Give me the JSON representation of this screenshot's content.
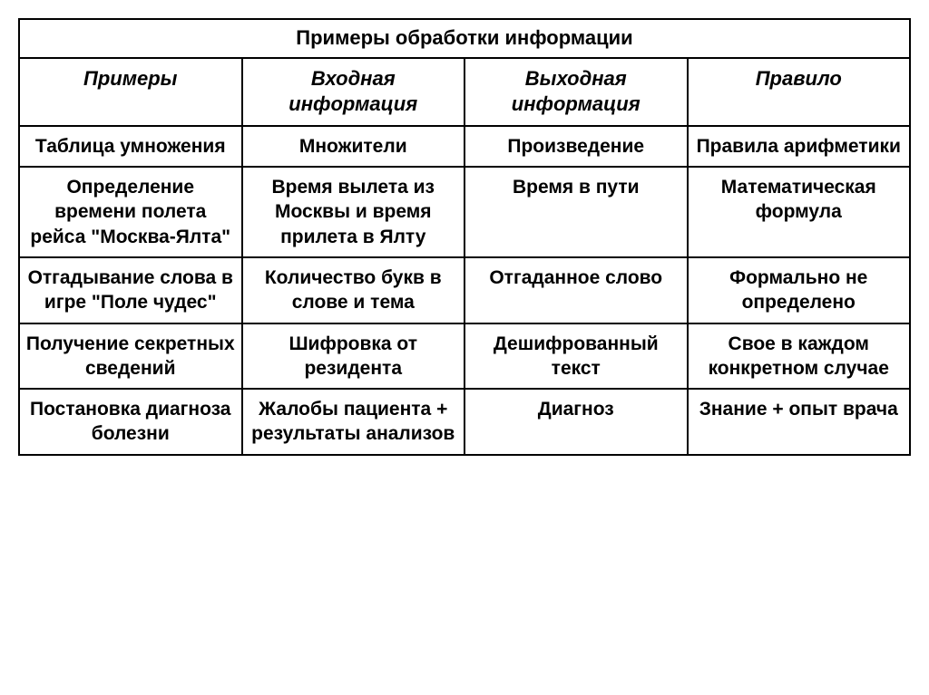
{
  "table": {
    "title": "Примеры обработки информации",
    "headers": [
      "Примеры",
      "Входная информация",
      "Выходная информация",
      "Правило"
    ],
    "rows": [
      [
        "Таблица умножения",
        "Множители",
        "Произведение",
        "Правила арифметики"
      ],
      [
        "Определение времени полета рейса \"Москва-Ялта\"",
        "Время вылета из Москвы и время прилета в Ялту",
        "Время в пути",
        "Математическая формула"
      ],
      [
        "Отгадывание слова в игре \"Поле чудес\"",
        "Количество букв в слове и тема",
        "Отгаданное слово",
        "Формально не определено"
      ],
      [
        "Получение секретных сведений",
        "Шифровка от резидента",
        "Дешифрованный текст",
        "Свое в каждом конкретном случае"
      ],
      [
        "Постановка диагноза болезни",
        "Жалобы пациента + результаты анализов",
        "Диагноз",
        "Знание + опыт врача"
      ]
    ],
    "styling": {
      "border_color": "#000000",
      "border_width": 2,
      "background_color": "#ffffff",
      "title_fontsize": 22,
      "title_fontweight": "bold",
      "header_fontsize": 22,
      "header_fontstyle": "italic",
      "header_fontweight": "bold",
      "cell_fontsize": 21,
      "cell_fontweight": "bold",
      "column_widths_pct": [
        25,
        25,
        25,
        25
      ],
      "text_align": "center",
      "vertical_align": "top"
    }
  }
}
